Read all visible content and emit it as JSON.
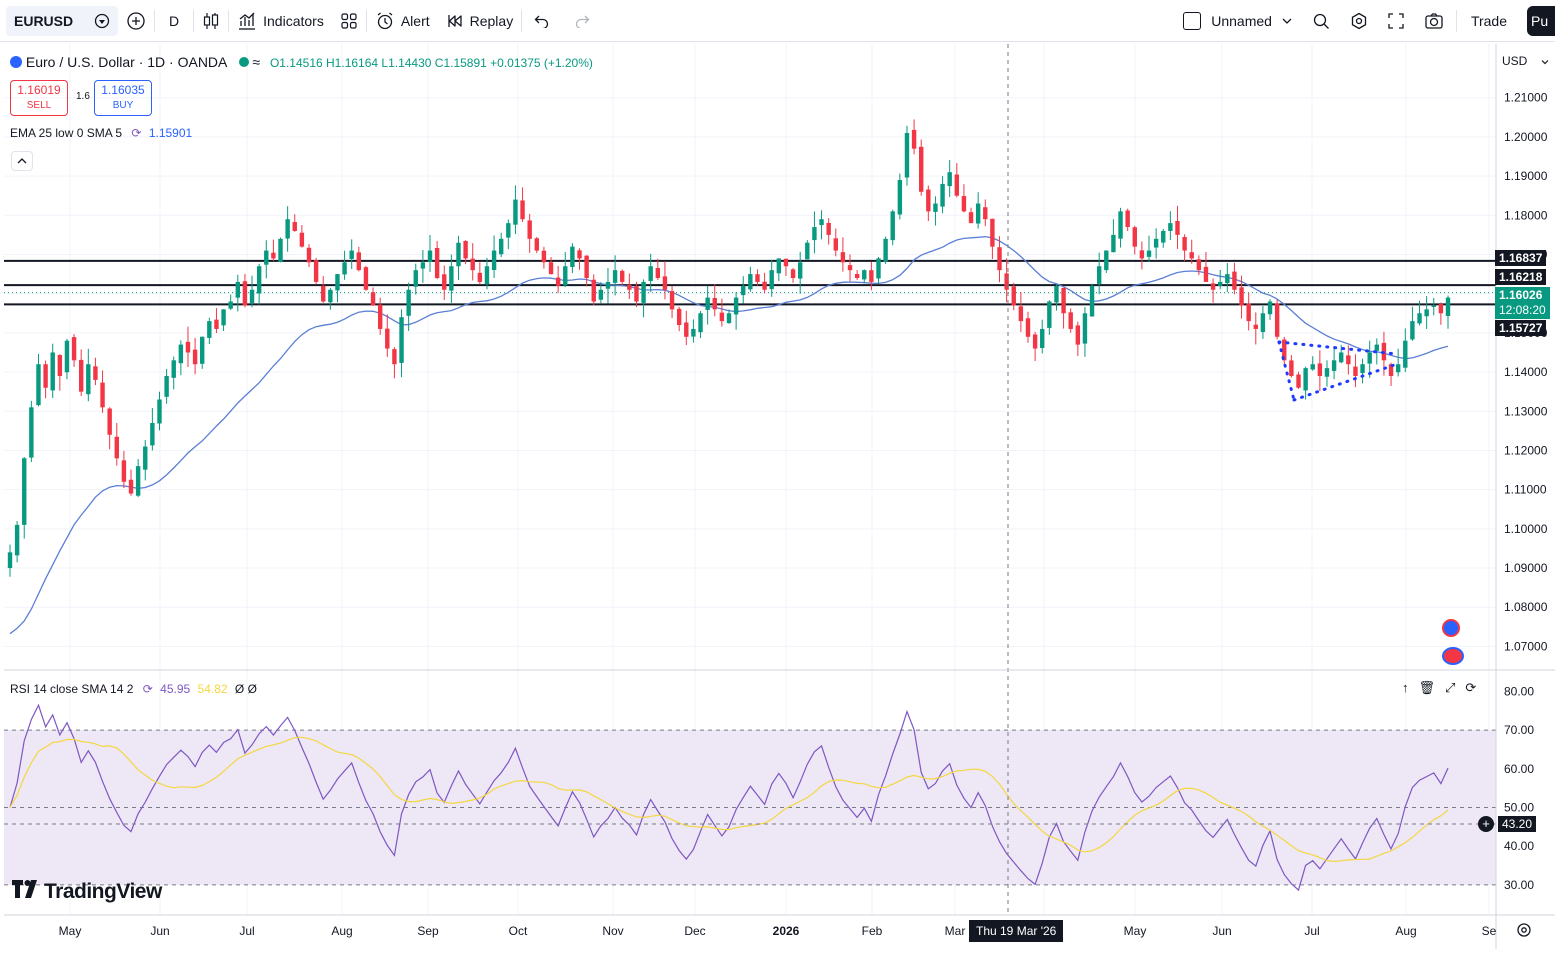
{
  "toolbar": {
    "symbol": "EURUSD",
    "interval": "D",
    "indicators_label": "Indicators",
    "alert_label": "Alert",
    "replay_label": "Replay",
    "layout_name": "Unnamed",
    "trade_label": "Trade",
    "publish_label": "Pu"
  },
  "legend": {
    "title": "Euro / U.S. Dollar · 1D · OANDA",
    "ohlc": "O1.14516 H1.16164 L1.14430 C1.15891 +0.01375 (+1.20%)",
    "sell_price": "1.16019",
    "sell_label": "SELL",
    "spread": "1.6",
    "buy_price": "1.16035",
    "buy_label": "BUY",
    "ema_label": "EMA 25 low 0 SMA 5",
    "ema_value": "1.15901"
  },
  "price_axis": {
    "currency": "USD",
    "ticks": [
      "1.21000",
      "1.20000",
      "1.19000",
      "1.18000",
      "1.17000",
      "1.16000",
      "1.15000",
      "1.14000",
      "1.13000",
      "1.12000",
      "1.11000",
      "1.10000",
      "1.09000",
      "1.08000",
      "1.07000"
    ],
    "tag_upper": "1.16837",
    "tag_mid": "1.16218",
    "tag_last": "1.16026",
    "tag_countdown": "12:08:20",
    "tag_lower": "1.15727"
  },
  "rsi": {
    "label": "RSI 14 close SMA 14 2",
    "rsi_value": "45.95",
    "sma_value": "54.82",
    "extra": "Ø Ø",
    "ticks": [
      "80.00",
      "70.00",
      "60.00",
      "50.00",
      "40.00",
      "30.00"
    ],
    "crosshair_value": "43.20"
  },
  "time_axis": {
    "labels": [
      "May",
      "Jun",
      "Jul",
      "Aug",
      "Sep",
      "Oct",
      "Nov",
      "Dec",
      "2026",
      "Feb",
      "Mar",
      "r",
      "May",
      "Jun",
      "Jul",
      "Aug",
      "Se"
    ],
    "crosshair_date": "Thu 19 Mar '26"
  },
  "brand": {
    "logo_text": "TradingView"
  },
  "colors": {
    "up": "#089981",
    "down": "#f23645",
    "ema": "#5b7fd6",
    "rsi_line": "#7e57c2",
    "rsi_sma": "#f5d742",
    "rsi_band": "#ede7f6"
  },
  "chart_data": {
    "type": "candlestick",
    "price_range": [
      1.065,
      1.2135
    ],
    "horizontal_levels": [
      1.16837,
      1.16218,
      1.15727
    ],
    "ohlc_close_series": [
      1.094,
      1.101,
      1.118,
      1.131,
      1.142,
      1.136,
      1.145,
      1.139,
      1.148,
      1.143,
      1.135,
      1.142,
      1.138,
      1.131,
      1.124,
      1.118,
      1.112,
      1.109,
      1.116,
      1.121,
      1.127,
      1.133,
      1.139,
      1.143,
      1.147,
      1.145,
      1.142,
      1.149,
      1.153,
      1.151,
      1.156,
      1.158,
      1.163,
      1.157,
      1.161,
      1.167,
      1.171,
      1.169,
      1.174,
      1.179,
      1.176,
      1.172,
      1.168,
      1.163,
      1.158,
      1.161,
      1.165,
      1.168,
      1.171,
      1.166,
      1.161,
      1.157,
      1.151,
      1.146,
      1.142,
      1.154,
      1.161,
      1.166,
      1.168,
      1.171,
      1.164,
      1.161,
      1.167,
      1.173,
      1.169,
      1.166,
      1.163,
      1.167,
      1.171,
      1.174,
      1.178,
      1.184,
      1.179,
      1.174,
      1.171,
      1.168,
      1.165,
      1.162,
      1.167,
      1.172,
      1.169,
      1.164,
      1.158,
      1.161,
      1.163,
      1.166,
      1.163,
      1.161,
      1.158,
      1.163,
      1.167,
      1.164,
      1.161,
      1.156,
      1.152,
      1.149,
      1.151,
      1.155,
      1.159,
      1.156,
      1.153,
      1.155,
      1.159,
      1.162,
      1.165,
      1.163,
      1.161,
      1.166,
      1.169,
      1.167,
      1.164,
      1.168,
      1.173,
      1.177,
      1.179,
      1.175,
      1.171,
      1.168,
      1.166,
      1.164,
      1.166,
      1.163,
      1.169,
      1.174,
      1.181,
      1.189,
      1.201,
      1.197,
      1.186,
      1.181,
      1.183,
      1.188,
      1.191,
      1.185,
      1.181,
      1.178,
      1.183,
      1.179,
      1.172,
      1.166,
      1.161,
      1.157,
      1.153,
      1.149,
      1.146,
      1.151,
      1.158,
      1.162,
      1.155,
      1.151,
      1.147,
      1.155,
      1.162,
      1.167,
      1.171,
      1.175,
      1.181,
      1.177,
      1.172,
      1.169,
      1.171,
      1.174,
      1.176,
      1.178,
      1.175,
      1.171,
      1.169,
      1.166,
      1.163,
      1.161,
      1.163,
      1.165,
      1.161,
      1.157,
      1.153,
      1.151,
      1.155,
      1.158,
      1.149,
      1.143,
      1.139,
      1.136,
      1.141,
      1.142,
      1.139,
      1.141,
      1.143,
      1.145,
      1.142,
      1.139,
      1.142,
      1.145,
      1.147,
      1.143,
      1.139,
      1.142,
      1.148,
      1.153,
      1.155,
      1.156,
      1.157,
      1.155,
      1.159
    ],
    "annotations": [
      "dotted triangle pattern Jun-Aug",
      "vertical crosshair at Thu 19 Mar '26"
    ]
  }
}
